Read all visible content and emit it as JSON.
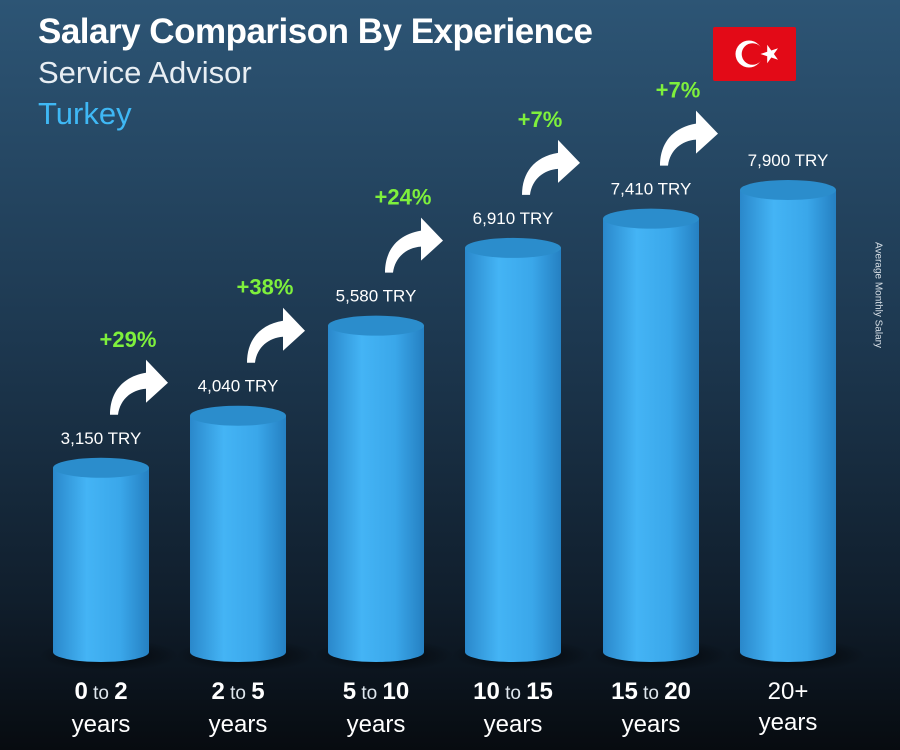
{
  "header": {
    "title": "Salary Comparison By Experience",
    "subtitle": "Service Advisor",
    "country": "Turkey"
  },
  "side_label": "Average Monthly Salary",
  "flag": {
    "colors": [
      "#e30a17",
      "#ffffff"
    ],
    "icon": "turkey-flag-icon"
  },
  "chart_data": {
    "type": "bar",
    "title": "Salary Comparison By Experience",
    "subtitle": "Service Advisor",
    "ylabel": "Average Monthly Salary",
    "currency": "TRY",
    "categories": [
      {
        "from": "0",
        "to": "2",
        "word": "to",
        "unit": "years"
      },
      {
        "from": "2",
        "to": "5",
        "word": "to",
        "unit": "years"
      },
      {
        "from": "5",
        "to": "10",
        "word": "to",
        "unit": "years"
      },
      {
        "from": "10",
        "to": "15",
        "word": "to",
        "unit": "years"
      },
      {
        "from": "15",
        "to": "20",
        "word": "to",
        "unit": "years"
      },
      {
        "from": "20+",
        "to": "",
        "word": "",
        "unit": "years"
      }
    ],
    "values": [
      3150,
      4040,
      5580,
      6910,
      7410,
      7900
    ],
    "value_labels": [
      "3,150 TRY",
      "4,040 TRY",
      "5,580 TRY",
      "6,910 TRY",
      "7,410 TRY",
      "7,900 TRY"
    ],
    "increases": [
      "+29%",
      "+38%",
      "+24%",
      "+7%",
      "+7%"
    ],
    "colors": {
      "bar": "#3aa6e6",
      "bar_top": "#2b8dcc",
      "increase": "#7ef03c"
    },
    "grid": false,
    "legend": "none"
  }
}
